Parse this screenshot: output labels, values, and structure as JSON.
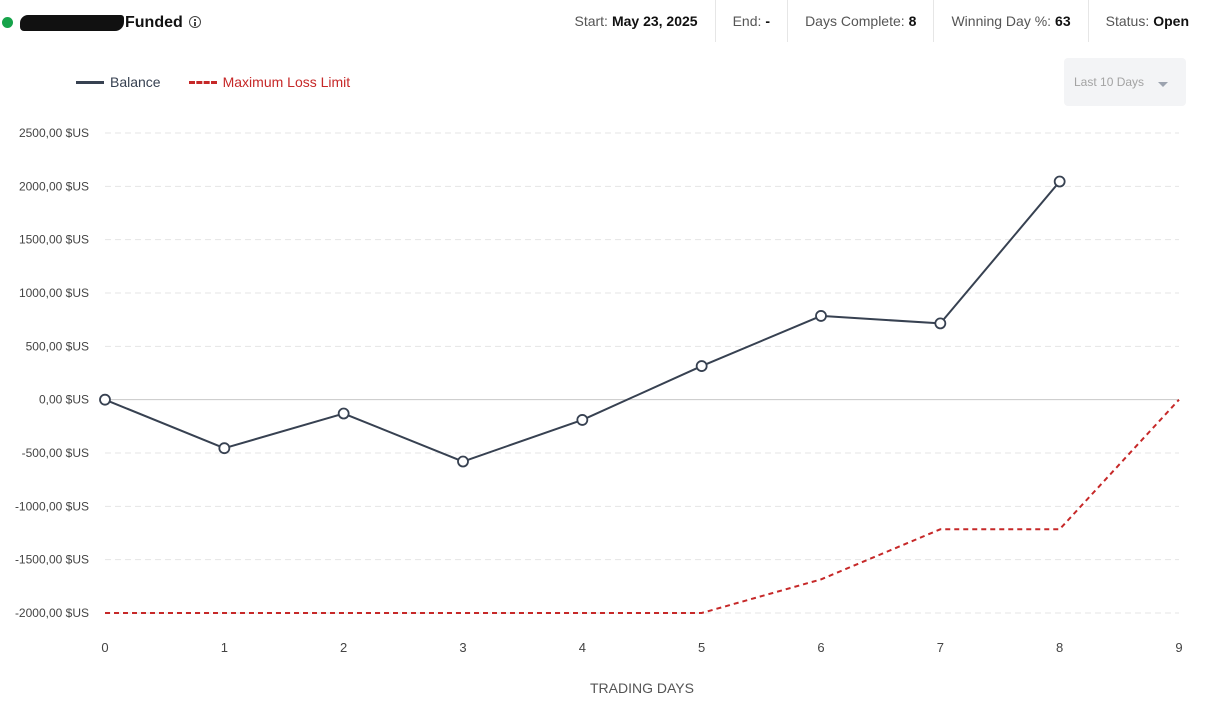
{
  "header": {
    "account_name_redacted": "",
    "account_type": "Funded",
    "status_dot_color": "#16a34a",
    "info_icon": "info-icon",
    "stats": [
      {
        "label": "Start:",
        "value": "May 23, 2025"
      },
      {
        "label": "End:",
        "value": "-"
      },
      {
        "label": "Days Complete:",
        "value": "8"
      },
      {
        "label": "Winning Day %:",
        "value": "63"
      },
      {
        "label": "Status:",
        "value": "Open"
      }
    ]
  },
  "range_select": {
    "selected": "Last 10 Days",
    "icon": "caret-down-icon"
  },
  "colors": {
    "balance": "#374151",
    "max_loss": "#c62828",
    "grid": "#e5e5e5",
    "zero_line": "#c8c8c8"
  },
  "chart_data": {
    "type": "line",
    "title": "",
    "xlabel": "TRADING DAYS",
    "ylabel": "",
    "x": [
      0,
      1,
      2,
      3,
      4,
      5,
      6,
      7,
      8,
      9
    ],
    "xlim": [
      0,
      9
    ],
    "ylim": [
      -2000,
      2500
    ],
    "yticks": [
      2500,
      2000,
      1500,
      1000,
      500,
      0,
      -500,
      -1000,
      -1500,
      -2000
    ],
    "ytick_labels": [
      "2500,00 $US",
      "2000,00 $US",
      "1500,00 $US",
      "1000,00 $US",
      "500,00 $US",
      "0,00 $US",
      "-500,00 $US",
      "-1000,00 $US",
      "-1500,00 $US",
      "-2000,00 $US"
    ],
    "xtick_labels": [
      "0",
      "1",
      "2",
      "3",
      "4",
      "5",
      "6",
      "7",
      "8",
      "9"
    ],
    "grid": "horizontal dashed",
    "legend": "top-left",
    "series": [
      {
        "name": "Balance",
        "style": "solid with hollow circle markers",
        "x": [
          0,
          1,
          2,
          3,
          4,
          5,
          6,
          7,
          8
        ],
        "values": [
          0,
          -455,
          -130,
          -580,
          -190,
          315,
          785,
          715,
          2045
        ]
      },
      {
        "name": "Maximum Loss Limit",
        "style": "dashed",
        "x": [
          0,
          1,
          2,
          3,
          4,
          5,
          6,
          7,
          8,
          9
        ],
        "values": [
          -2000,
          -2000,
          -2000,
          -2000,
          -2000,
          -2000,
          -1685,
          -1215,
          -1215,
          0
        ]
      }
    ]
  }
}
